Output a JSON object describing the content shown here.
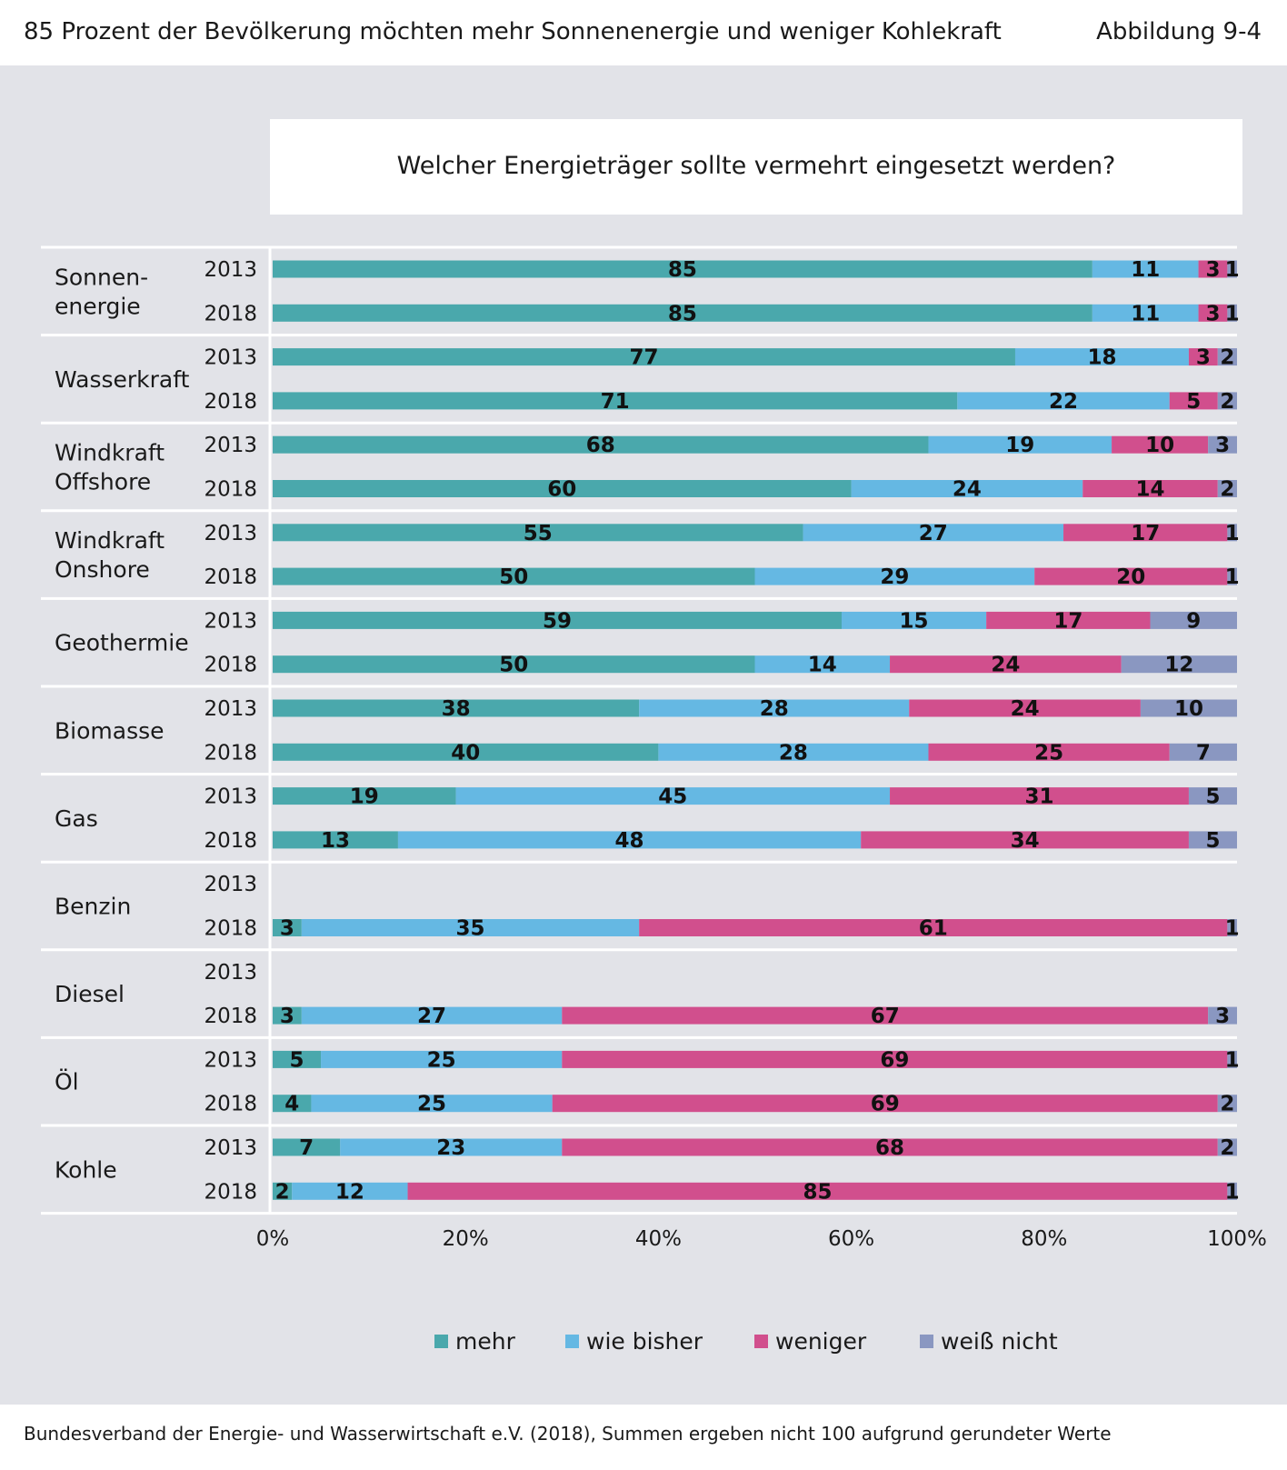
{
  "header": {
    "title": "85 Prozent der Bevölkerung möchten mehr Sonnenenergie und weniger Kohlekraft",
    "figure_label": "Abbildung 9-4"
  },
  "question": "Welcher Energieträger sollte vermehrt eingesetzt werden?",
  "footer": {
    "source": "Bundesverband der Energie- und Wasserwirtschaft e.V. (2018), Summen ergeben nicht 100 aufgrund gerundeter Werte"
  },
  "colors": {
    "mehr": "#4aa8ac",
    "wie_bisher": "#65b8e3",
    "weniger": "#d14f8d",
    "weiss_nicht": "#8a97c1"
  },
  "legend": [
    {
      "key": "mehr",
      "label": "mehr"
    },
    {
      "key": "wie_bisher",
      "label": "wie bisher"
    },
    {
      "key": "weniger",
      "label": "weniger"
    },
    {
      "key": "weiss_nicht",
      "label": "weiß nicht"
    }
  ],
  "chart_data": {
    "type": "bar",
    "orientation": "horizontal",
    "stacked": true,
    "title": "Welcher Energieträger sollte vermehrt eingesetzt werden?",
    "xlim": [
      0,
      100
    ],
    "x_ticks": [
      "0%",
      "20%",
      "40%",
      "60%",
      "80%",
      "100%"
    ],
    "series_names": [
      "mehr",
      "wie bisher",
      "weniger",
      "weiß nicht"
    ],
    "groups": [
      {
        "category": [
          "Sonnen-",
          "energie"
        ],
        "rows": [
          {
            "year": "2013",
            "values": [
              85,
              11,
              3,
              1
            ]
          },
          {
            "year": "2018",
            "values": [
              85,
              11,
              3,
              1
            ]
          }
        ]
      },
      {
        "category": [
          "Wasserkraft"
        ],
        "rows": [
          {
            "year": "2013",
            "values": [
              77,
              18,
              3,
              2
            ]
          },
          {
            "year": "2018",
            "values": [
              71,
              22,
              5,
              2
            ]
          }
        ]
      },
      {
        "category": [
          "Windkraft",
          "Offshore"
        ],
        "rows": [
          {
            "year": "2013",
            "values": [
              68,
              19,
              10,
              3
            ]
          },
          {
            "year": "2018",
            "values": [
              60,
              24,
              14,
              2
            ]
          }
        ]
      },
      {
        "category": [
          "Windkraft",
          "Onshore"
        ],
        "rows": [
          {
            "year": "2013",
            "values": [
              55,
              27,
              17,
              1
            ]
          },
          {
            "year": "2018",
            "values": [
              50,
              29,
              20,
              1
            ]
          }
        ]
      },
      {
        "category": [
          "Geothermie"
        ],
        "rows": [
          {
            "year": "2013",
            "values": [
              59,
              15,
              17,
              9
            ]
          },
          {
            "year": "2018",
            "values": [
              50,
              14,
              24,
              12
            ]
          }
        ]
      },
      {
        "category": [
          "Biomasse"
        ],
        "rows": [
          {
            "year": "2013",
            "values": [
              38,
              28,
              24,
              10
            ]
          },
          {
            "year": "2018",
            "values": [
              40,
              28,
              25,
              7
            ]
          }
        ]
      },
      {
        "category": [
          "Gas"
        ],
        "rows": [
          {
            "year": "2013",
            "values": [
              19,
              45,
              31,
              5
            ]
          },
          {
            "year": "2018",
            "values": [
              13,
              48,
              34,
              5
            ]
          }
        ]
      },
      {
        "category": [
          "Benzin"
        ],
        "rows": [
          {
            "year": "2013",
            "values": null
          },
          {
            "year": "2018",
            "values": [
              3,
              35,
              61,
              1
            ]
          }
        ]
      },
      {
        "category": [
          "Diesel"
        ],
        "rows": [
          {
            "year": "2013",
            "values": null
          },
          {
            "year": "2018",
            "values": [
              3,
              27,
              67,
              3
            ]
          }
        ]
      },
      {
        "category": [
          "Öl"
        ],
        "rows": [
          {
            "year": "2013",
            "values": [
              5,
              25,
              69,
              1
            ]
          },
          {
            "year": "2018",
            "values": [
              4,
              25,
              69,
              2
            ]
          }
        ]
      },
      {
        "category": [
          "Kohle"
        ],
        "rows": [
          {
            "year": "2013",
            "values": [
              7,
              23,
              68,
              2
            ]
          },
          {
            "year": "2018",
            "values": [
              2,
              12,
              85,
              1
            ]
          }
        ]
      }
    ]
  }
}
